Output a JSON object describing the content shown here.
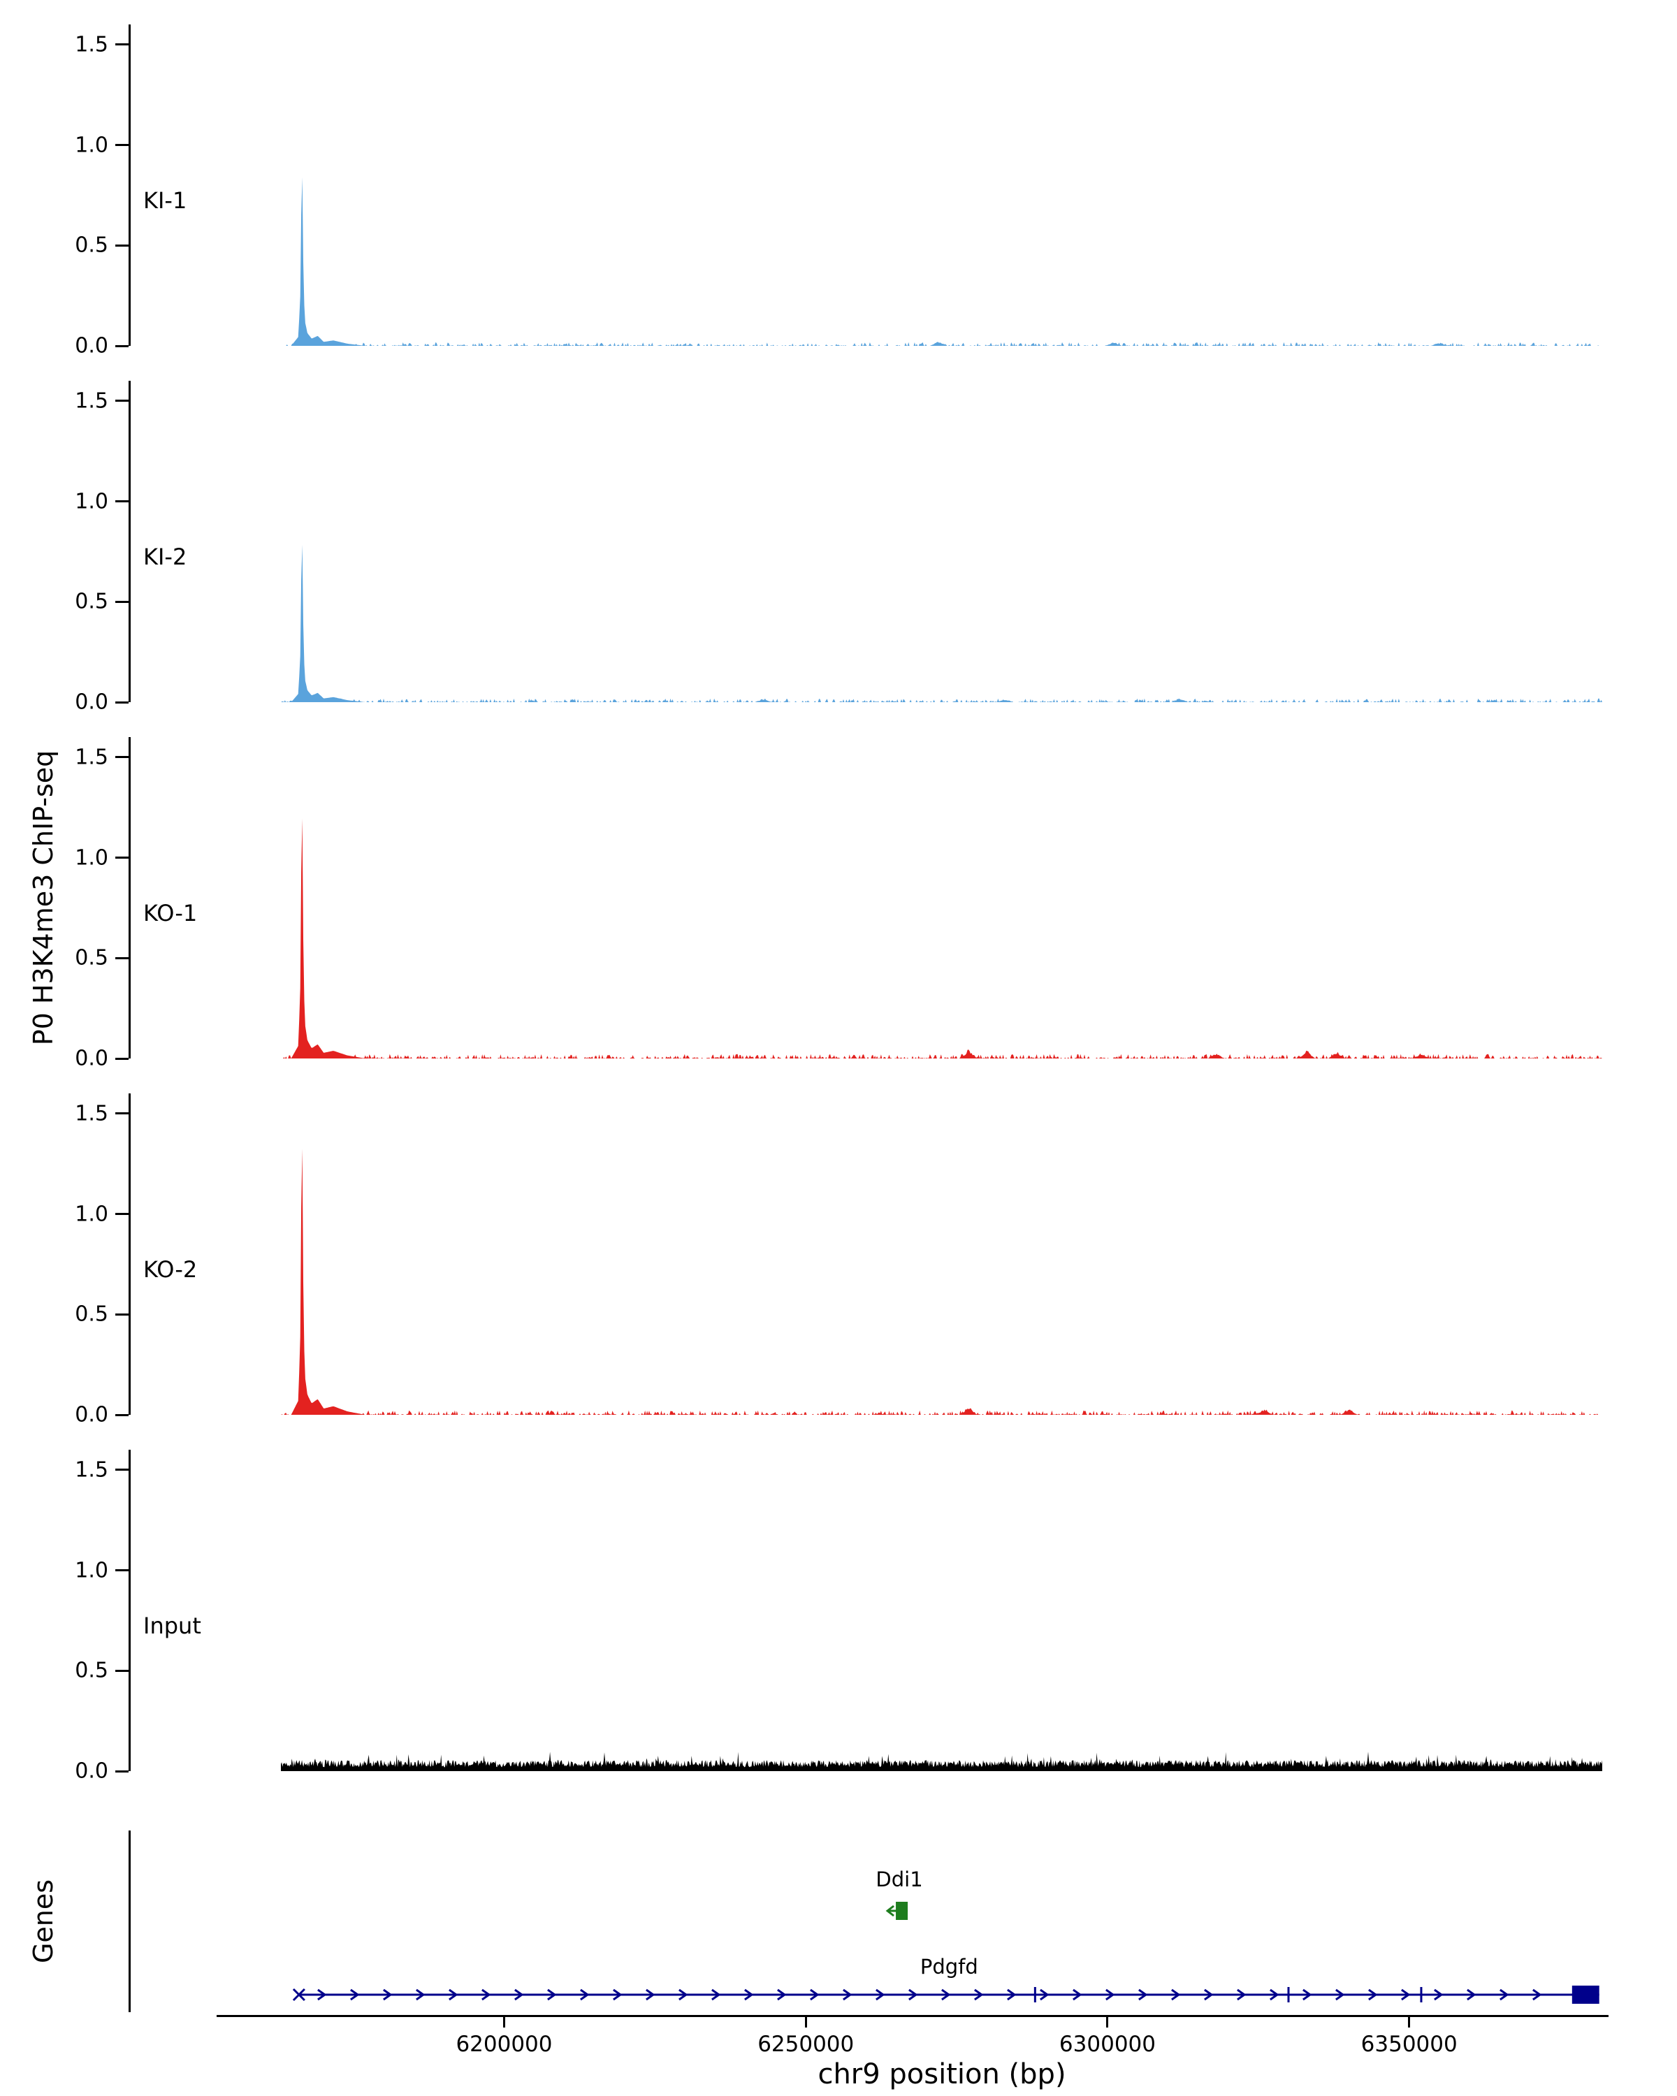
{
  "chart_data": {
    "type": "area",
    "title": "",
    "xlabel": "chr9 position (bp)",
    "ylabel": "P0 H3K4me3 ChIP-seq",
    "genes_label": "Genes",
    "x_range": [
      6163000,
      6382000
    ],
    "x_ticks": [
      6200000,
      6250000,
      6300000,
      6350000
    ],
    "x_tick_labels": [
      "6200000",
      "6250000",
      "6300000",
      "6350000"
    ],
    "ylim": [
      0,
      1.6
    ],
    "y_ticks": [
      1.5,
      1.0,
      0.5,
      0.0
    ],
    "y_tick_labels": [
      "1.5",
      "1.0",
      "0.5",
      "0.0"
    ],
    "grid": false,
    "legend": "none",
    "tracks": [
      {
        "name": "KI-1",
        "color": "#5aa3dc",
        "peak": {
          "x": 6166500,
          "height": 0.9
        },
        "noise_amp": 0.018,
        "noise_density": 0.42,
        "seed": 11,
        "bumps": [
          [
            6272000,
            0.025
          ],
          [
            6301000,
            0.02
          ],
          [
            6355000,
            0.018
          ]
        ]
      },
      {
        "name": "KI-2",
        "color": "#5aa3dc",
        "peak": {
          "x": 6166500,
          "height": 0.84
        },
        "noise_amp": 0.018,
        "noise_density": 0.46,
        "seed": 22,
        "bumps": [
          [
            6243000,
            0.02
          ],
          [
            6283000,
            0.018
          ],
          [
            6312000,
            0.02
          ]
        ]
      },
      {
        "name": "KO-1",
        "color": "#e32220",
        "peak": {
          "x": 6166500,
          "height": 1.28
        },
        "noise_amp": 0.022,
        "noise_density": 0.5,
        "seed": 33,
        "bumps": [
          [
            6277000,
            0.05
          ],
          [
            6318000,
            0.03
          ],
          [
            6333000,
            0.045
          ],
          [
            6338000,
            0.04
          ],
          [
            6352000,
            0.03
          ]
        ]
      },
      {
        "name": "KO-2",
        "color": "#e32220",
        "peak": {
          "x": 6166500,
          "height": 1.42
        },
        "noise_amp": 0.022,
        "noise_density": 0.5,
        "seed": 44,
        "bumps": [
          [
            6277000,
            0.05
          ],
          [
            6326000,
            0.035
          ],
          [
            6340000,
            0.035
          ]
        ]
      },
      {
        "name": "Input",
        "color": "#000000",
        "peak": null,
        "noise_amp": 0.055,
        "noise_density": 1.0,
        "seed": 55,
        "bumps": []
      }
    ],
    "genes": [
      {
        "name": "Ddi1",
        "color": "#1e7d1e",
        "start": 6263500,
        "end": 6267500,
        "strand": "-"
      },
      {
        "name": "Pdgfd",
        "color": "#00008b",
        "start": 6166000,
        "end": 6381500,
        "strand": "+",
        "exon_ticks": [
          6288000,
          6330000,
          6352000
        ],
        "end_box": [
          6377000,
          6381500
        ]
      }
    ]
  }
}
